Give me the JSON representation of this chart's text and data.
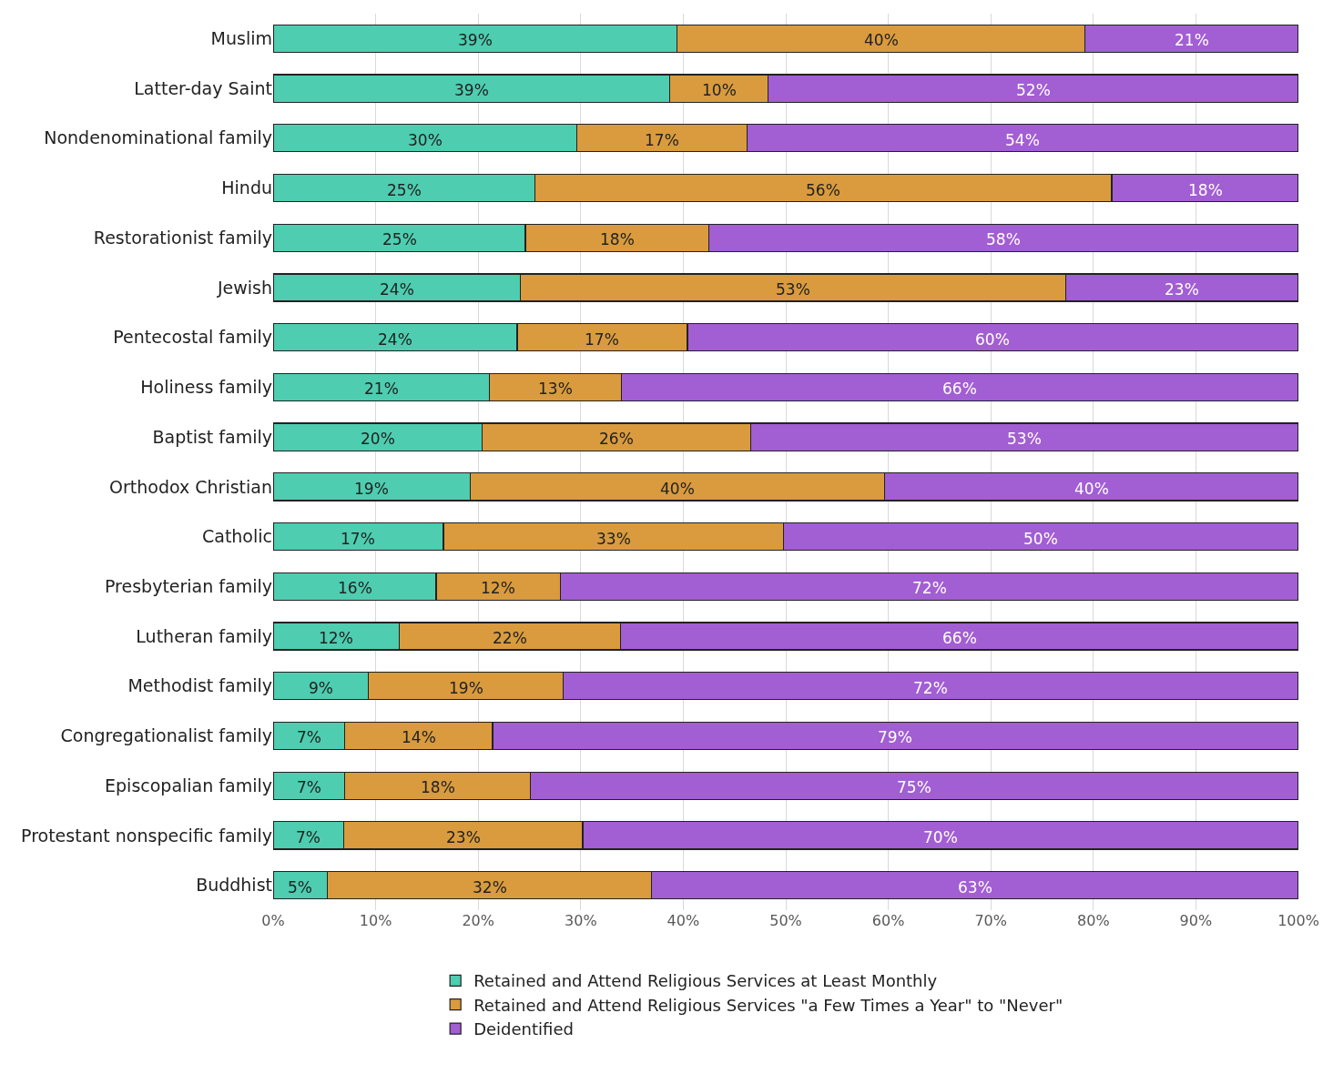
{
  "chart_data": {
    "type": "bar",
    "orientation": "horizontal",
    "stacked": true,
    "categories": [
      "Muslim",
      "Latter-day Saint",
      "Nondenominational family",
      "Hindu",
      "Restorationist family",
      "Jewish",
      "Pentecostal family",
      "Holiness family",
      "Baptist family",
      "Orthodox Christian",
      "Catholic",
      "Presbyterian family",
      "Lutheran family",
      "Methodist family",
      "Congregationalist family",
      "Episcopalian family",
      "Protestant nonspecific family",
      "Buddhist"
    ],
    "series": [
      {
        "name": "Retained and Attend Religious Services at Least Monthly",
        "color": "#4ecdb0",
        "values": [
          39.4,
          38.7,
          29.6,
          25.5,
          24.6,
          24.1,
          23.8,
          21.1,
          20.4,
          19.2,
          16.6,
          15.9,
          12.3,
          9.3,
          7.0,
          7.0,
          6.9,
          5.3
        ],
        "value_labels": [
          "39%",
          "39%",
          "30%",
          "25%",
          "25%",
          "24%",
          "24%",
          "21%",
          "20%",
          "19%",
          "17%",
          "16%",
          "12%",
          "9%",
          "7%",
          "7%",
          "7%",
          "5%"
        ]
      },
      {
        "name": "Retained and Attend Religious Services \"a Few Times a Year\" to \"Never\"",
        "color": "#d99b3e",
        "values": [
          39.8,
          9.6,
          16.6,
          56.3,
          17.9,
          53.2,
          16.6,
          12.9,
          26.2,
          40.4,
          33.2,
          12.1,
          21.6,
          19.0,
          14.4,
          18.1,
          23.3,
          31.6
        ],
        "value_labels": [
          "40%",
          "10%",
          "17%",
          "56%",
          "18%",
          "53%",
          "17%",
          "13%",
          "26%",
          "40%",
          "33%",
          "12%",
          "22%",
          "19%",
          "14%",
          "18%",
          "23%",
          "32%"
        ]
      },
      {
        "name": "Deidentified",
        "color": "#a25ed3",
        "values": [
          20.8,
          51.7,
          53.8,
          18.2,
          57.5,
          22.7,
          59.6,
          66.0,
          53.4,
          40.4,
          50.2,
          72.0,
          66.1,
          71.7,
          78.6,
          74.9,
          69.8,
          63.1
        ],
        "value_labels": [
          "21%",
          "52%",
          "54%",
          "18%",
          "58%",
          "23%",
          "60%",
          "66%",
          "53%",
          "40%",
          "50%",
          "72%",
          "66%",
          "72%",
          "79%",
          "75%",
          "70%",
          "63%"
        ]
      }
    ],
    "xlim": [
      0,
      100
    ],
    "xticks": [
      {
        "value": 0,
        "label": "0%"
      },
      {
        "value": 10,
        "label": "10%"
      },
      {
        "value": 20,
        "label": "20%"
      },
      {
        "value": 30,
        "label": "30%"
      },
      {
        "value": 40,
        "label": "40%"
      },
      {
        "value": 50,
        "label": "50%"
      },
      {
        "value": 60,
        "label": "60%"
      },
      {
        "value": 70,
        "label": "70%"
      },
      {
        "value": 80,
        "label": "80%"
      },
      {
        "value": 90,
        "label": "90%"
      },
      {
        "value": 100,
        "label": "100%"
      }
    ],
    "grid": "x",
    "legend": "bottom"
  }
}
